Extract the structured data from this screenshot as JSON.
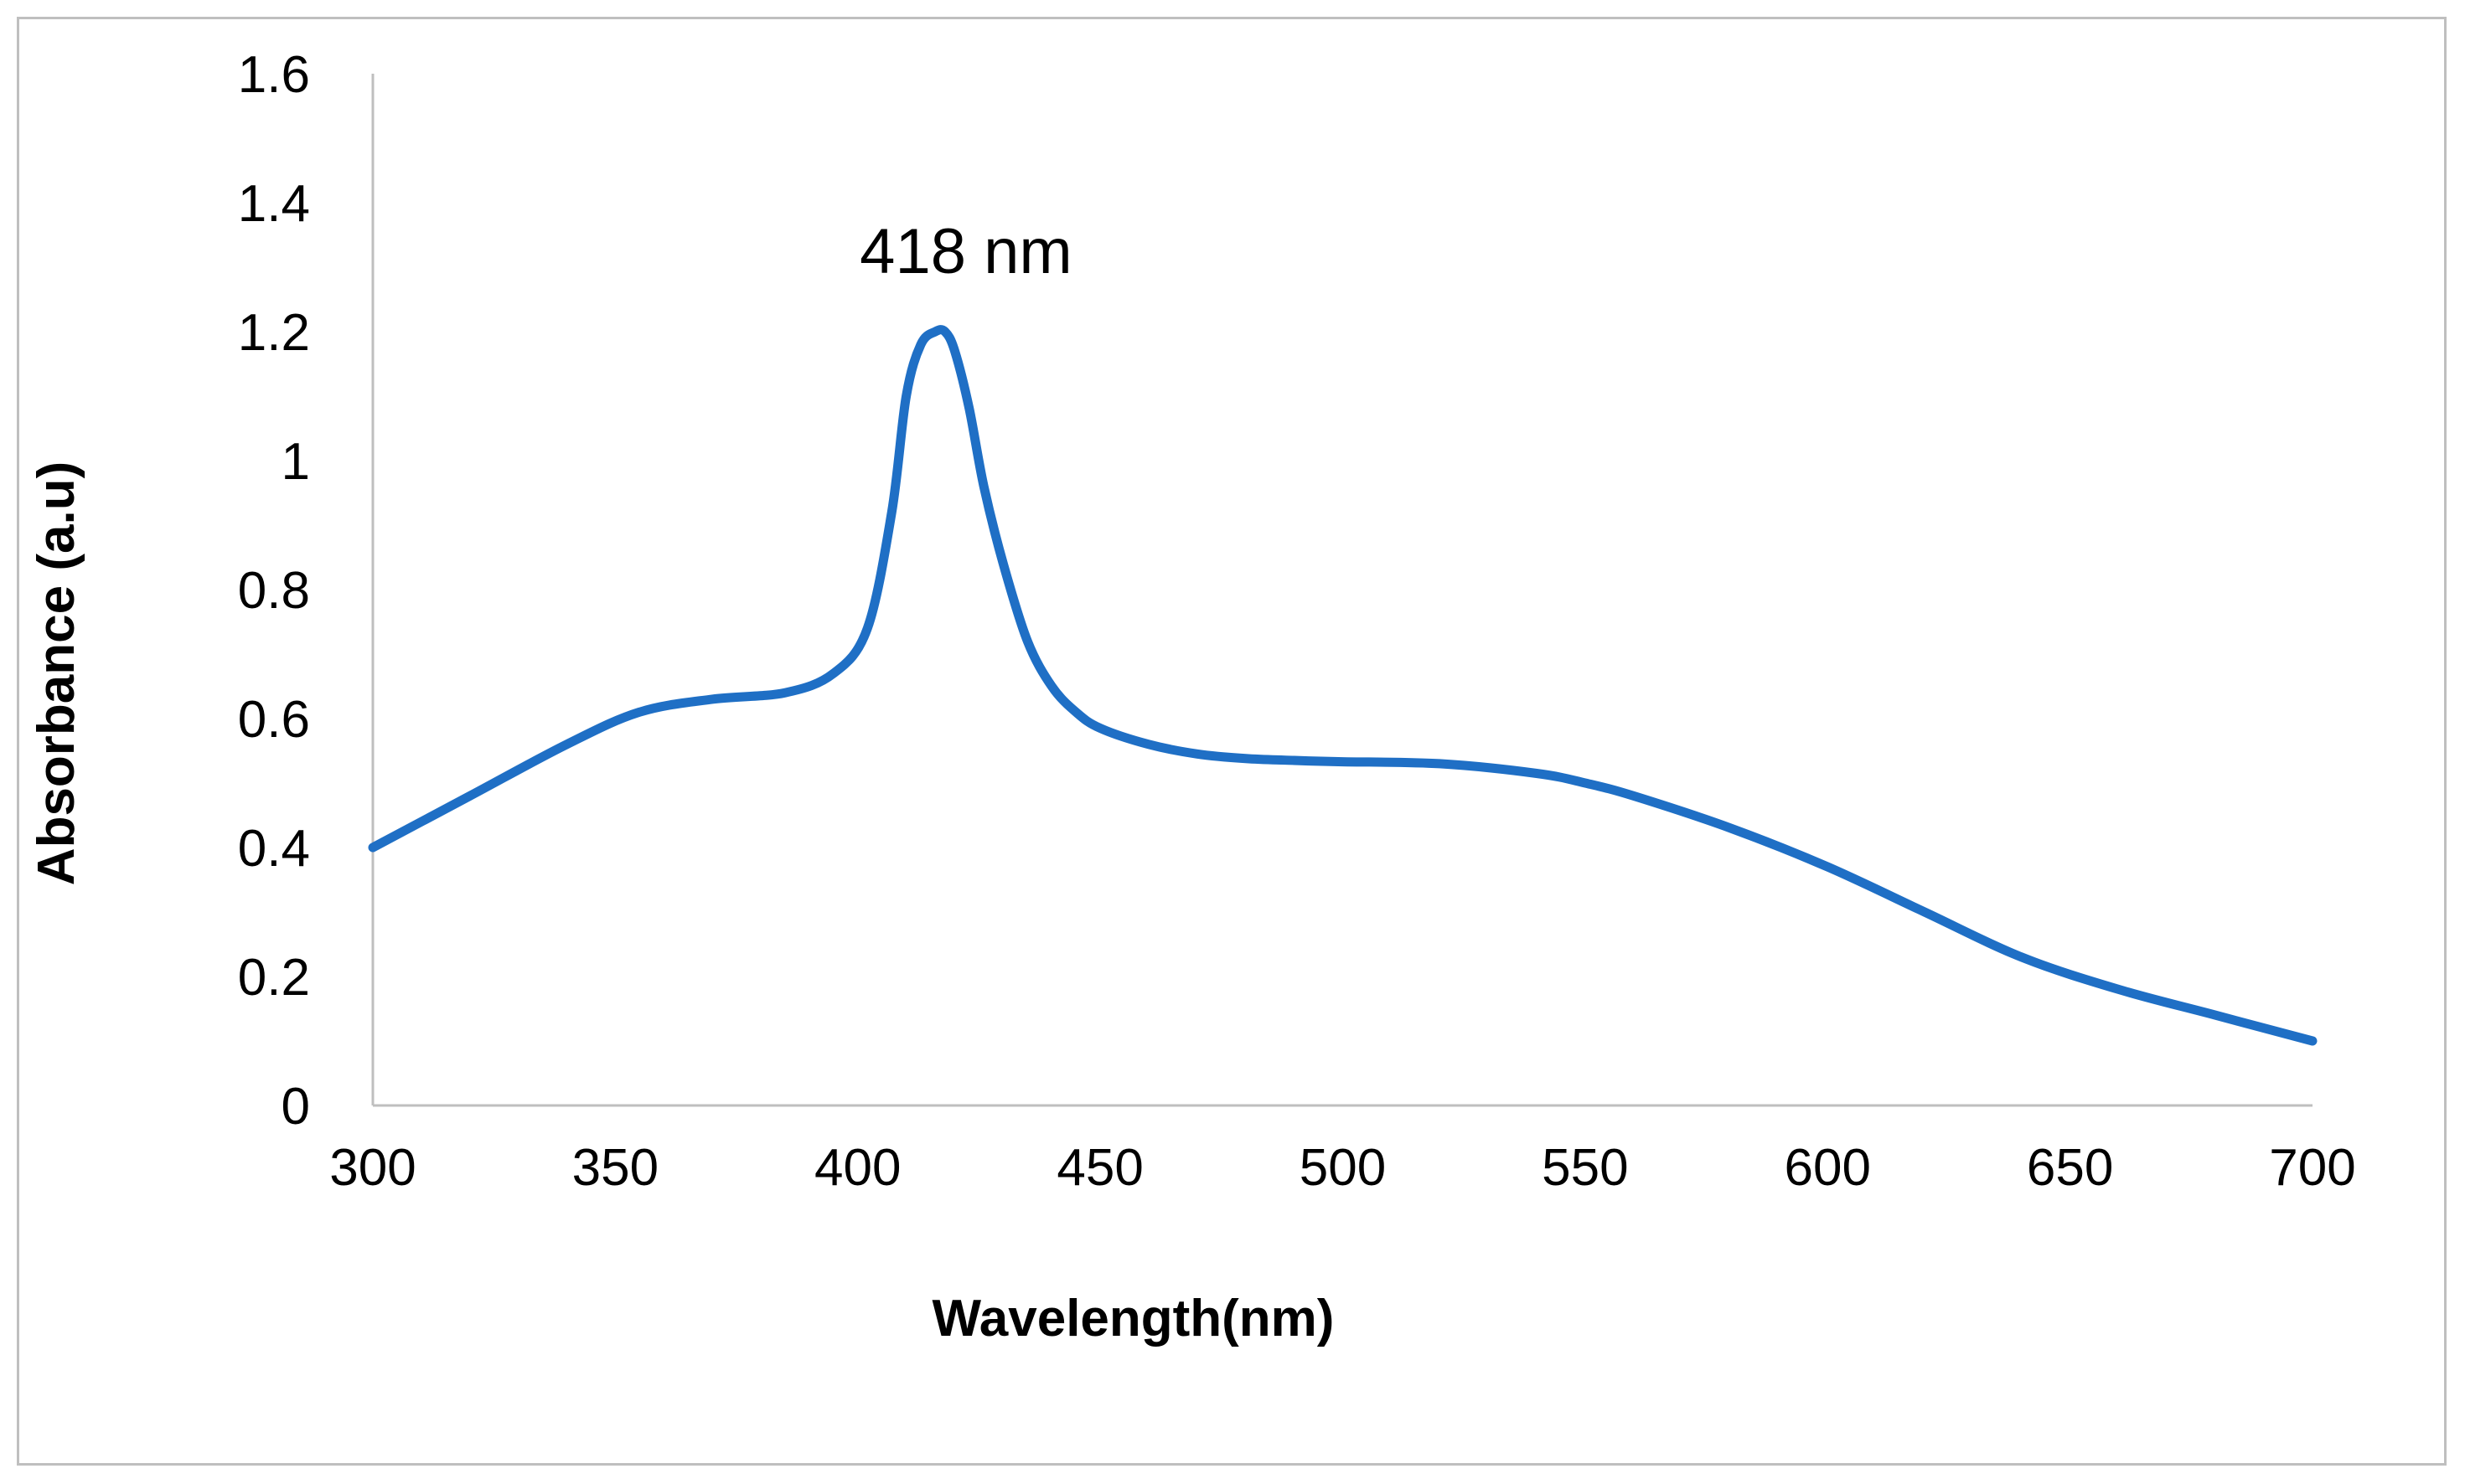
{
  "chart_data": {
    "type": "line",
    "title": "",
    "xlabel": "Wavelength(nm)",
    "ylabel": "Absorbance (a.u)",
    "xlim": [
      300,
      700
    ],
    "ylim": [
      0,
      1.6
    ],
    "x_ticks": [
      "300",
      "350",
      "400",
      "450",
      "500",
      "550",
      "600",
      "650",
      "700"
    ],
    "y_ticks": [
      "0",
      "0.2",
      "0.4",
      "0.6",
      "0.8",
      "1",
      "1.2",
      "1.4",
      "1.6"
    ],
    "grid": false,
    "legend": "none",
    "annotations": [
      {
        "text": "418 nm",
        "x": 418,
        "y": 1.2
      }
    ],
    "series": [
      {
        "name": "Absorbance",
        "color": "#1f6fc5",
        "x": [
          300,
          320,
          340,
          355,
          370,
          385,
          395,
          402,
          407,
          410,
          413,
          416,
          418,
          420,
          423,
          426,
          430,
          435,
          440,
          445,
          450,
          460,
          470,
          480,
          490,
          500,
          520,
          540,
          550,
          560,
          580,
          600,
          620,
          640,
          660,
          680,
          700
        ],
        "y": [
          0.4,
          0.48,
          0.56,
          0.61,
          0.63,
          0.64,
          0.67,
          0.74,
          0.92,
          1.1,
          1.18,
          1.2,
          1.2,
          1.17,
          1.08,
          0.96,
          0.84,
          0.72,
          0.65,
          0.61,
          0.585,
          0.56,
          0.545,
          0.538,
          0.535,
          0.533,
          0.53,
          0.515,
          0.5,
          0.48,
          0.43,
          0.37,
          0.3,
          0.23,
          0.18,
          0.14,
          0.1
        ]
      }
    ]
  }
}
